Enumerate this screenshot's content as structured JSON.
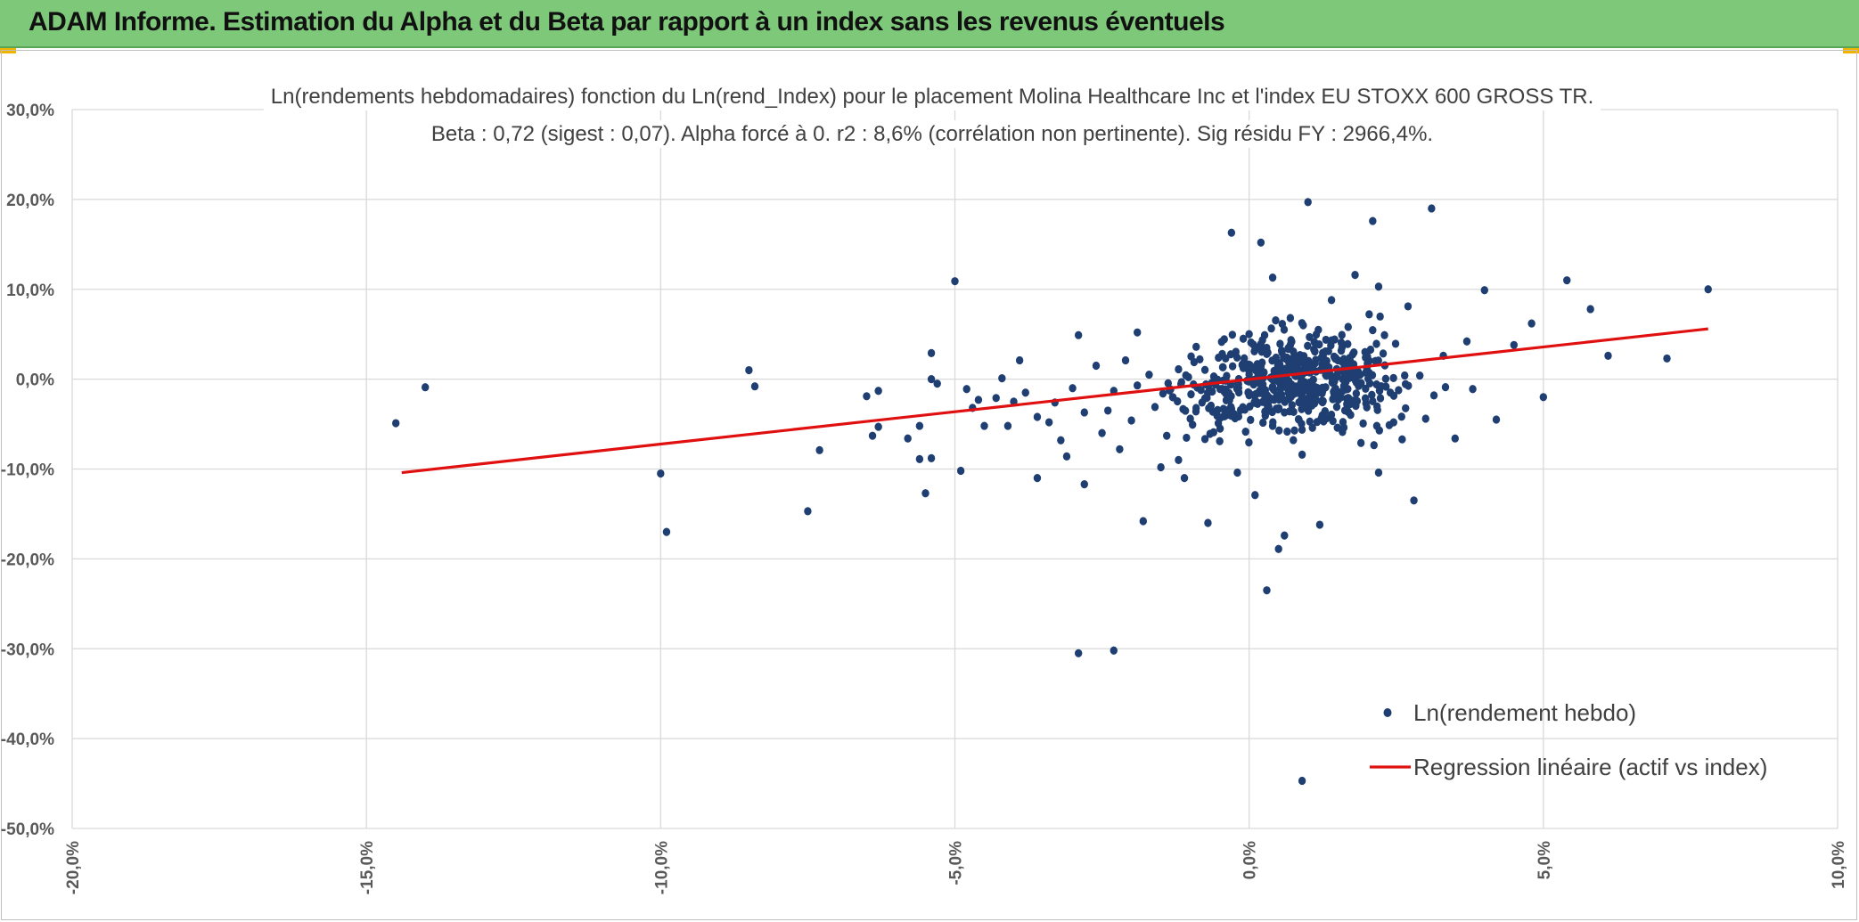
{
  "banner": {
    "title": "ADAM Informe. Estimation du Alpha et du Beta par rapport à un index sans les revenus éventuels",
    "color": "#7ec87a"
  },
  "chart_data": {
    "type": "scatter",
    "title": "Ln(rendements hebdomadaires) fonction du Ln(rend_Index) pour le placement Molina Healthcare Inc et l'index EU STOXX 600 GROSS TR.",
    "subtitle": "Beta : 0,72 (sigest : 0,07). Alpha forcé à 0. r2 : 8,6% (corrélation non pertinente). Sig résidu FY : 2966,4%.",
    "xlim": [
      -20,
      10
    ],
    "ylim": [
      -50,
      30
    ],
    "x_ticks": [
      -20,
      -15,
      -10,
      -5,
      0,
      5,
      10
    ],
    "y_ticks": [
      -50,
      -40,
      -30,
      -20,
      -10,
      0,
      10,
      20,
      30
    ],
    "x_tick_labels": [
      "-20,0%",
      "-15,0%",
      "-10,0%",
      "-5,0%",
      "0,0%",
      "5,0%",
      "10,0%"
    ],
    "y_tick_labels": [
      "-50,0%",
      "-40,0%",
      "-30,0%",
      "-20,0%",
      "-10,0%",
      "0,0%",
      "10,0%",
      "20,0%",
      "30,0%"
    ],
    "grid": true,
    "legend_position": "bottom-right",
    "series": [
      {
        "name": "Ln(rendement hebdo)",
        "kind": "scatter",
        "color": "#1f3f73",
        "points": [
          [
            -14.5,
            -4.9
          ],
          [
            -14.0,
            -0.9
          ],
          [
            -10.0,
            -10.5
          ],
          [
            -9.9,
            -17.0
          ],
          [
            -8.5,
            1.0
          ],
          [
            -8.4,
            -0.8
          ],
          [
            -7.5,
            -14.7
          ],
          [
            -7.3,
            -7.9
          ],
          [
            -6.5,
            -1.9
          ],
          [
            -6.4,
            -6.3
          ],
          [
            -6.3,
            -1.3
          ],
          [
            -6.3,
            -5.3
          ],
          [
            -5.8,
            -6.6
          ],
          [
            -5.6,
            -8.9
          ],
          [
            -5.6,
            -5.2
          ],
          [
            -5.5,
            -12.7
          ],
          [
            -5.4,
            2.9
          ],
          [
            -5.4,
            0.0
          ],
          [
            -5.4,
            -8.8
          ],
          [
            -5.3,
            -0.5
          ],
          [
            -5.0,
            10.9
          ],
          [
            -4.9,
            -10.2
          ],
          [
            -4.8,
            -1.1
          ],
          [
            -4.7,
            -3.2
          ],
          [
            -4.6,
            -2.3
          ],
          [
            -4.5,
            -5.2
          ],
          [
            -4.3,
            -2.1
          ],
          [
            -4.2,
            0.1
          ],
          [
            -4.1,
            -5.2
          ],
          [
            -4.0,
            -2.5
          ],
          [
            -3.9,
            2.1
          ],
          [
            -3.8,
            -1.5
          ],
          [
            -3.6,
            -4.2
          ],
          [
            -3.6,
            -11.0
          ],
          [
            -3.4,
            -4.8
          ],
          [
            -3.3,
            -2.6
          ],
          [
            -3.2,
            -6.8
          ],
          [
            -3.1,
            -8.6
          ],
          [
            -3.0,
            -1.0
          ],
          [
            -2.9,
            4.9
          ],
          [
            -2.8,
            -3.7
          ],
          [
            -2.8,
            -11.7
          ],
          [
            -2.6,
            1.5
          ],
          [
            -2.5,
            -6.0
          ],
          [
            -2.4,
            -3.5
          ],
          [
            -2.3,
            -1.3
          ],
          [
            -2.2,
            -7.8
          ],
          [
            -2.1,
            2.1
          ],
          [
            -2.0,
            -4.6
          ],
          [
            -1.9,
            -0.7
          ],
          [
            -1.9,
            5.2
          ],
          [
            -1.8,
            -15.8
          ],
          [
            -1.7,
            0.5
          ],
          [
            -1.6,
            -3.1
          ],
          [
            -1.5,
            -9.8
          ],
          [
            -1.4,
            -6.3
          ],
          [
            -1.3,
            -2.0
          ],
          [
            -1.2,
            1.1
          ],
          [
            -1.1,
            -11.0
          ],
          [
            -1.0,
            -4.4
          ],
          [
            -0.9,
            3.6
          ],
          [
            -0.8,
            -2.6
          ],
          [
            -0.7,
            -16.0
          ],
          [
            -0.6,
            0.3
          ],
          [
            -0.5,
            -6.9
          ],
          [
            -0.4,
            2.3
          ],
          [
            -0.3,
            -3.3
          ],
          [
            -0.2,
            -10.4
          ],
          [
            -0.1,
            4.5
          ],
          [
            0.0,
            -1.8
          ],
          [
            0.1,
            -12.9
          ],
          [
            0.2,
            15.2
          ],
          [
            0.2,
            -0.6
          ],
          [
            0.3,
            2.8
          ],
          [
            0.4,
            -5.2
          ],
          [
            0.5,
            1.1
          ],
          [
            0.5,
            -18.9
          ],
          [
            0.6,
            -3.7
          ],
          [
            0.7,
            6.8
          ],
          [
            0.8,
            0.4
          ],
          [
            0.9,
            -8.4
          ],
          [
            1.0,
            -2.4
          ],
          [
            1.0,
            19.7
          ],
          [
            1.1,
            3.3
          ],
          [
            1.2,
            -16.2
          ],
          [
            1.3,
            -0.9
          ],
          [
            1.4,
            8.8
          ],
          [
            1.5,
            -5.4
          ],
          [
            1.6,
            2.1
          ],
          [
            1.7,
            -2.2
          ],
          [
            1.8,
            11.6
          ],
          [
            1.9,
            -7.1
          ],
          [
            2.0,
            1.2
          ],
          [
            2.1,
            17.6
          ],
          [
            2.2,
            -10.4
          ],
          [
            2.3,
            4.9
          ],
          [
            2.4,
            -1.5
          ],
          [
            2.6,
            -6.7
          ],
          [
            2.7,
            8.1
          ],
          [
            2.9,
            0.4
          ],
          [
            3.0,
            -4.4
          ],
          [
            3.1,
            19.0
          ],
          [
            3.3,
            2.6
          ],
          [
            3.5,
            -6.6
          ],
          [
            3.7,
            4.2
          ],
          [
            3.8,
            -1.1
          ],
          [
            4.0,
            9.9
          ],
          [
            4.2,
            -4.5
          ],
          [
            4.5,
            3.8
          ],
          [
            4.8,
            6.2
          ],
          [
            5.0,
            -2.0
          ],
          [
            5.4,
            11.0
          ],
          [
            5.8,
            7.8
          ],
          [
            6.1,
            2.6
          ],
          [
            7.1,
            2.3
          ],
          [
            7.8,
            10.0
          ],
          [
            -2.9,
            -30.5
          ],
          [
            -2.3,
            -30.2
          ],
          [
            0.3,
            -23.5
          ],
          [
            0.9,
            -44.7
          ],
          [
            -0.3,
            16.3
          ],
          [
            0.4,
            11.3
          ],
          [
            2.2,
            10.3
          ],
          [
            2.8,
            -13.5
          ],
          [
            0.6,
            -17.4
          ],
          [
            -1.2,
            -9.0
          ]
        ]
      },
      {
        "name": "Regression linéaire (actif vs index)",
        "kind": "line",
        "color": "#e01010",
        "points": [
          [
            -14.4,
            -10.4
          ],
          [
            7.8,
            5.6
          ]
        ]
      }
    ],
    "cluster": {
      "center": [
        0.7,
        -0.3
      ],
      "spread_x": 1.35,
      "spread_y": 3.6,
      "count": 520
    }
  },
  "legend": {
    "items": [
      {
        "label": "Ln(rendement hebdo)",
        "symbol": "dot",
        "color": "#1f3f73"
      },
      {
        "label": "Regression linéaire (actif vs index)",
        "symbol": "line",
        "color": "#e01010"
      }
    ]
  }
}
